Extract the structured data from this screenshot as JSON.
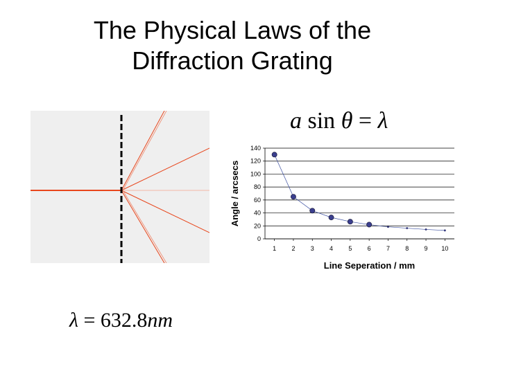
{
  "slide": {
    "title_line1": "The Physical Laws of the",
    "title_line2": "Diffraction Grating",
    "formula": {
      "a": "a",
      "sin": "sin",
      "theta": "θ",
      "eq": "=",
      "lambda": "λ"
    },
    "wavelength": {
      "lambda": "λ",
      "eq": "=",
      "value": "632.8",
      "unit": "nm"
    }
  },
  "colors": {
    "beam": "#e8461c",
    "diagram_bg": "#efefef",
    "marker": "#3b3f8f",
    "line": "#3b4fa0"
  },
  "chart_data": {
    "type": "line",
    "xlabel": "Line Seperation / mm",
    "ylabel": "Angle / arcsecs",
    "x": [
      1,
      2,
      3,
      4,
      5,
      6,
      7,
      8,
      9,
      10
    ],
    "series": [
      {
        "values": [
          130,
          65,
          43.5,
          33,
          26.5,
          22,
          18.5,
          16.5,
          14.5,
          13
        ]
      }
    ],
    "xlim": [
      1,
      10
    ],
    "ylim": [
      0,
      140
    ],
    "yticks": [
      0,
      20,
      40,
      60,
      80,
      100,
      120,
      140
    ],
    "xticks": [
      1,
      2,
      3,
      4,
      5,
      6,
      7,
      8,
      9,
      10
    ],
    "grid": "horizontal",
    "large_markers_count": 6
  }
}
